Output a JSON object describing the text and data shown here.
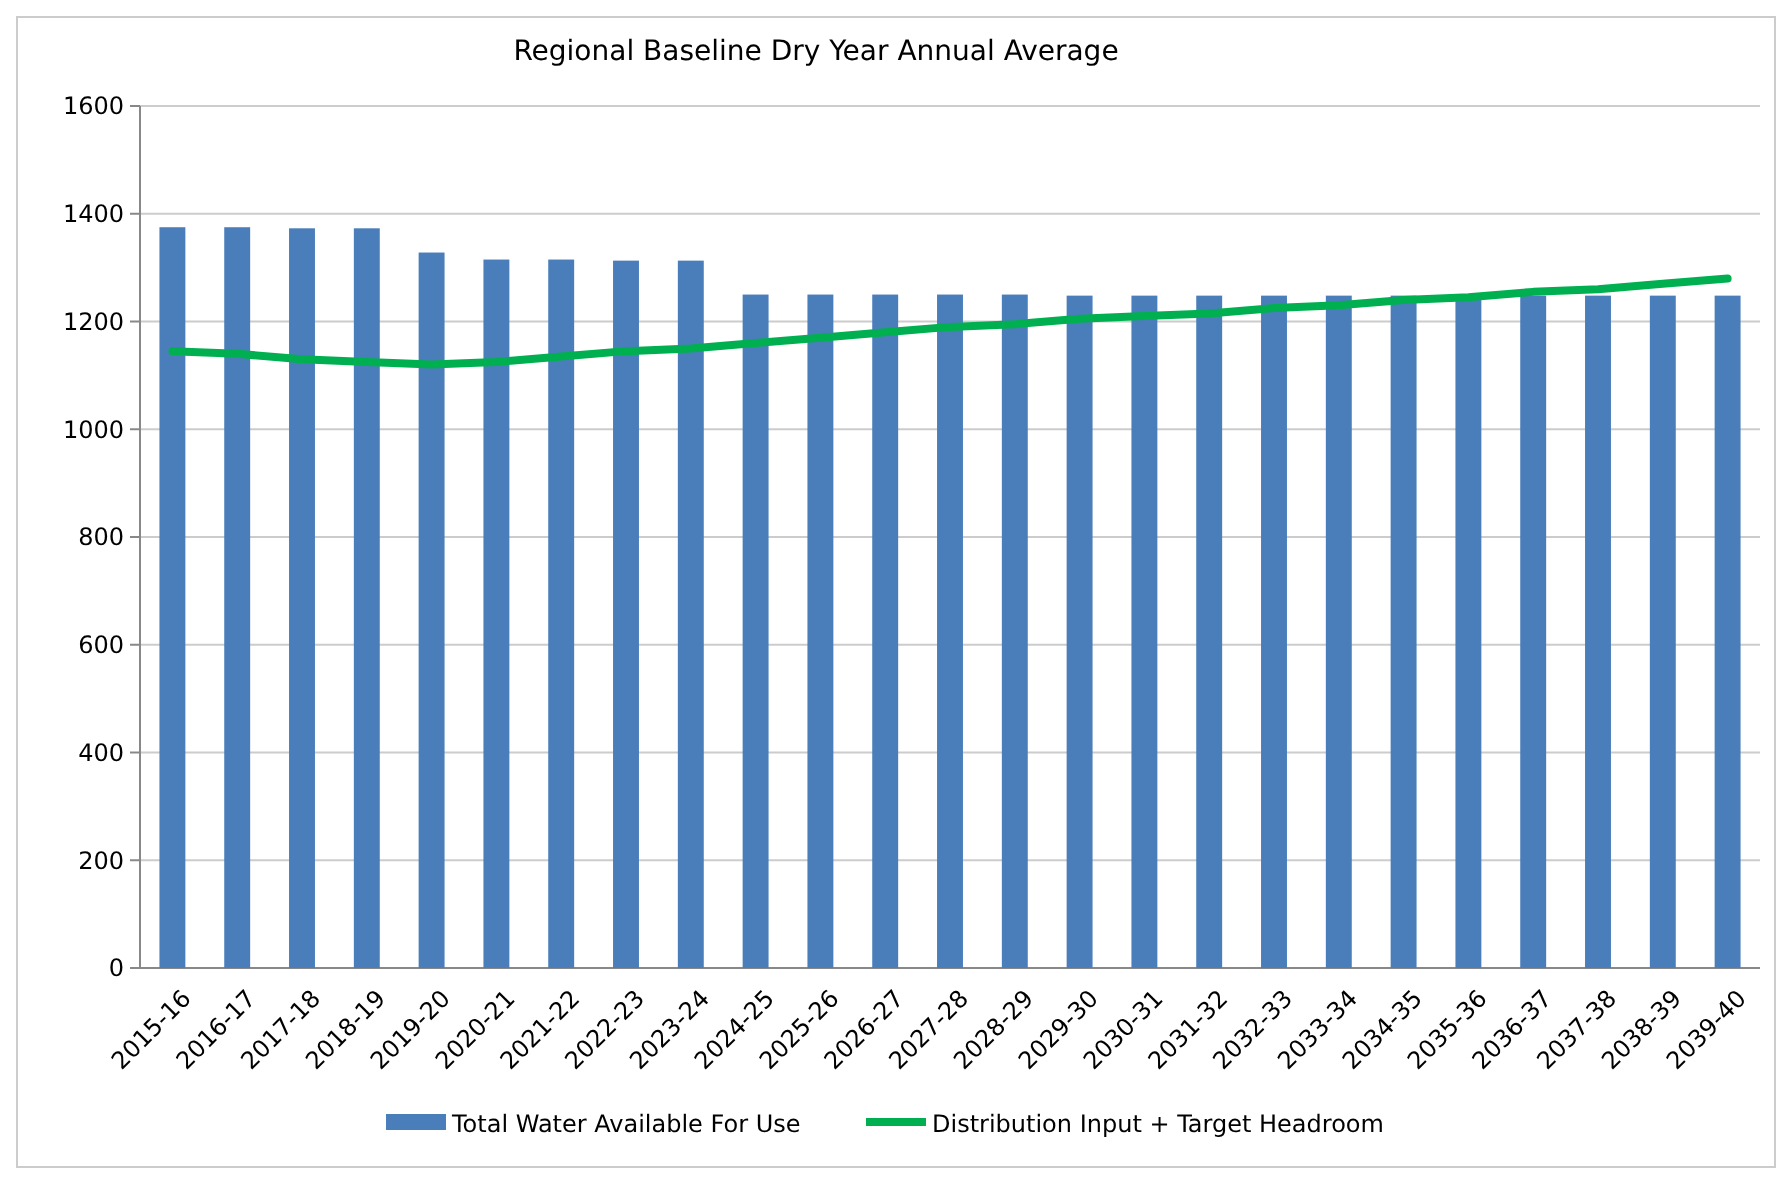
{
  "chart_data": {
    "type": "bar",
    "title": "Regional Baseline Dry Year Annual Average",
    "categories": [
      "2015-16",
      "2016-17",
      "2017-18",
      "2018-19",
      "2019-20",
      "2020-21",
      "2021-22",
      "2022-23",
      "2023-24",
      "2024-25",
      "2025-26",
      "2026-27",
      "2027-28",
      "2028-29",
      "2029-30",
      "2030-31",
      "2031-32",
      "2032-33",
      "2033-34",
      "2034-35",
      "2035-36",
      "2036-37",
      "2037-38",
      "2038-39",
      "2039-40"
    ],
    "series": [
      {
        "name": "Total Water Available For Use",
        "color": "#4a7ebb",
        "values": [
          1375,
          1375,
          1373,
          1373,
          1328,
          1315,
          1315,
          1313,
          1313,
          1250,
          1250,
          1250,
          1250,
          1250,
          1248,
          1248,
          1248,
          1248,
          1248,
          1248,
          1248,
          1248,
          1248,
          1248,
          1248
        ]
      },
      {
        "name": "Distribution Input + Target Headroom",
        "type": "line",
        "color": "#00b050",
        "values": [
          1145,
          1140,
          1130,
          1125,
          1120,
          1125,
          1135,
          1145,
          1150,
          1160,
          1170,
          1180,
          1190,
          1195,
          1205,
          1210,
          1215,
          1225,
          1230,
          1240,
          1245,
          1255,
          1260,
          1270,
          1280
        ]
      }
    ],
    "ylim": [
      0,
      1600
    ],
    "yticks": [
      0,
      200,
      400,
      600,
      800,
      1000,
      1200,
      1400,
      1600
    ],
    "grid": "y",
    "legend": "bottom",
    "marker": "none"
  }
}
